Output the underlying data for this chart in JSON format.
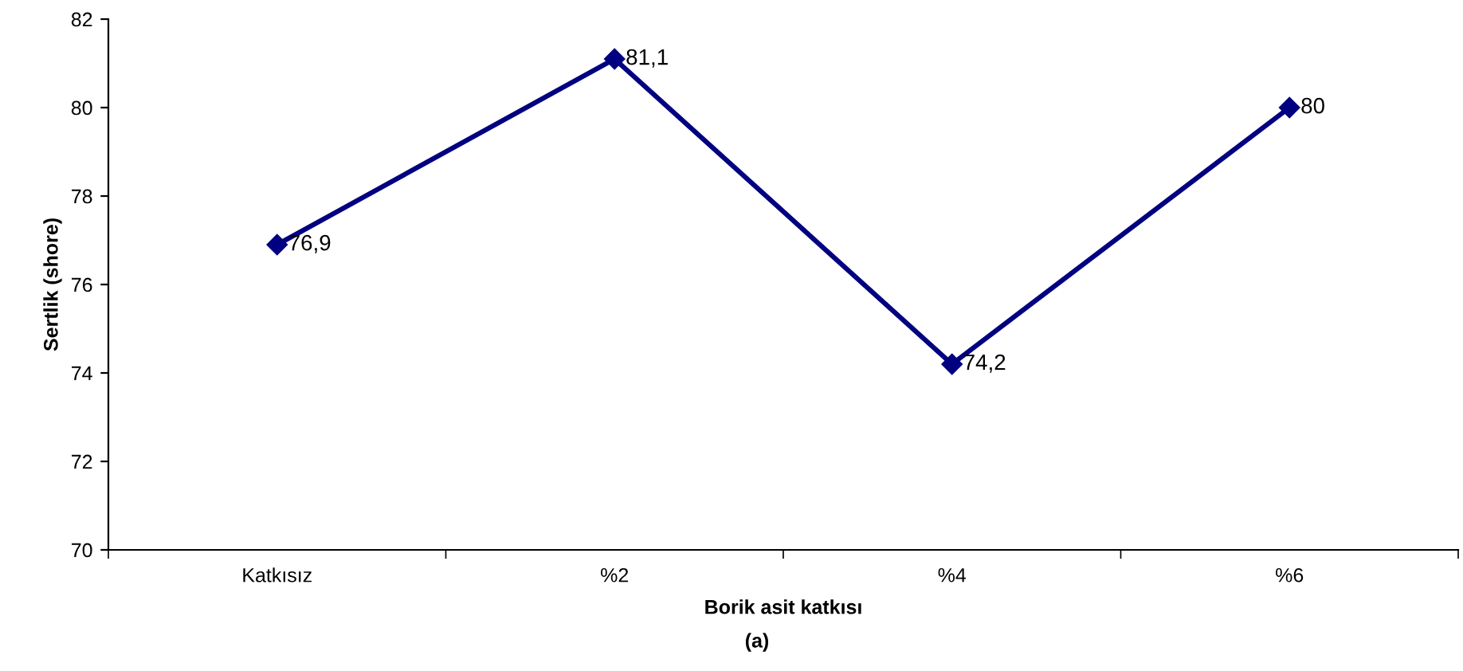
{
  "chart_data": {
    "type": "line",
    "xlabel": "Borik asit katkısı",
    "ylabel": "Sertlik (shore)",
    "categories": [
      "Katkısız",
      "%2",
      "%4",
      "%6"
    ],
    "series": [
      {
        "color": "#000080",
        "values": [
          76.9,
          81.1,
          74.2,
          80
        ],
        "value_labels": [
          "76,9",
          "81,1",
          "74,2",
          "80"
        ]
      }
    ],
    "ylim": [
      70,
      82
    ],
    "yticks": [
      70,
      72,
      74,
      76,
      78,
      80,
      82
    ],
    "marker": "diamond",
    "line_style": "solid",
    "grid": false,
    "legend": false,
    "annotations": [
      "(a)"
    ]
  }
}
